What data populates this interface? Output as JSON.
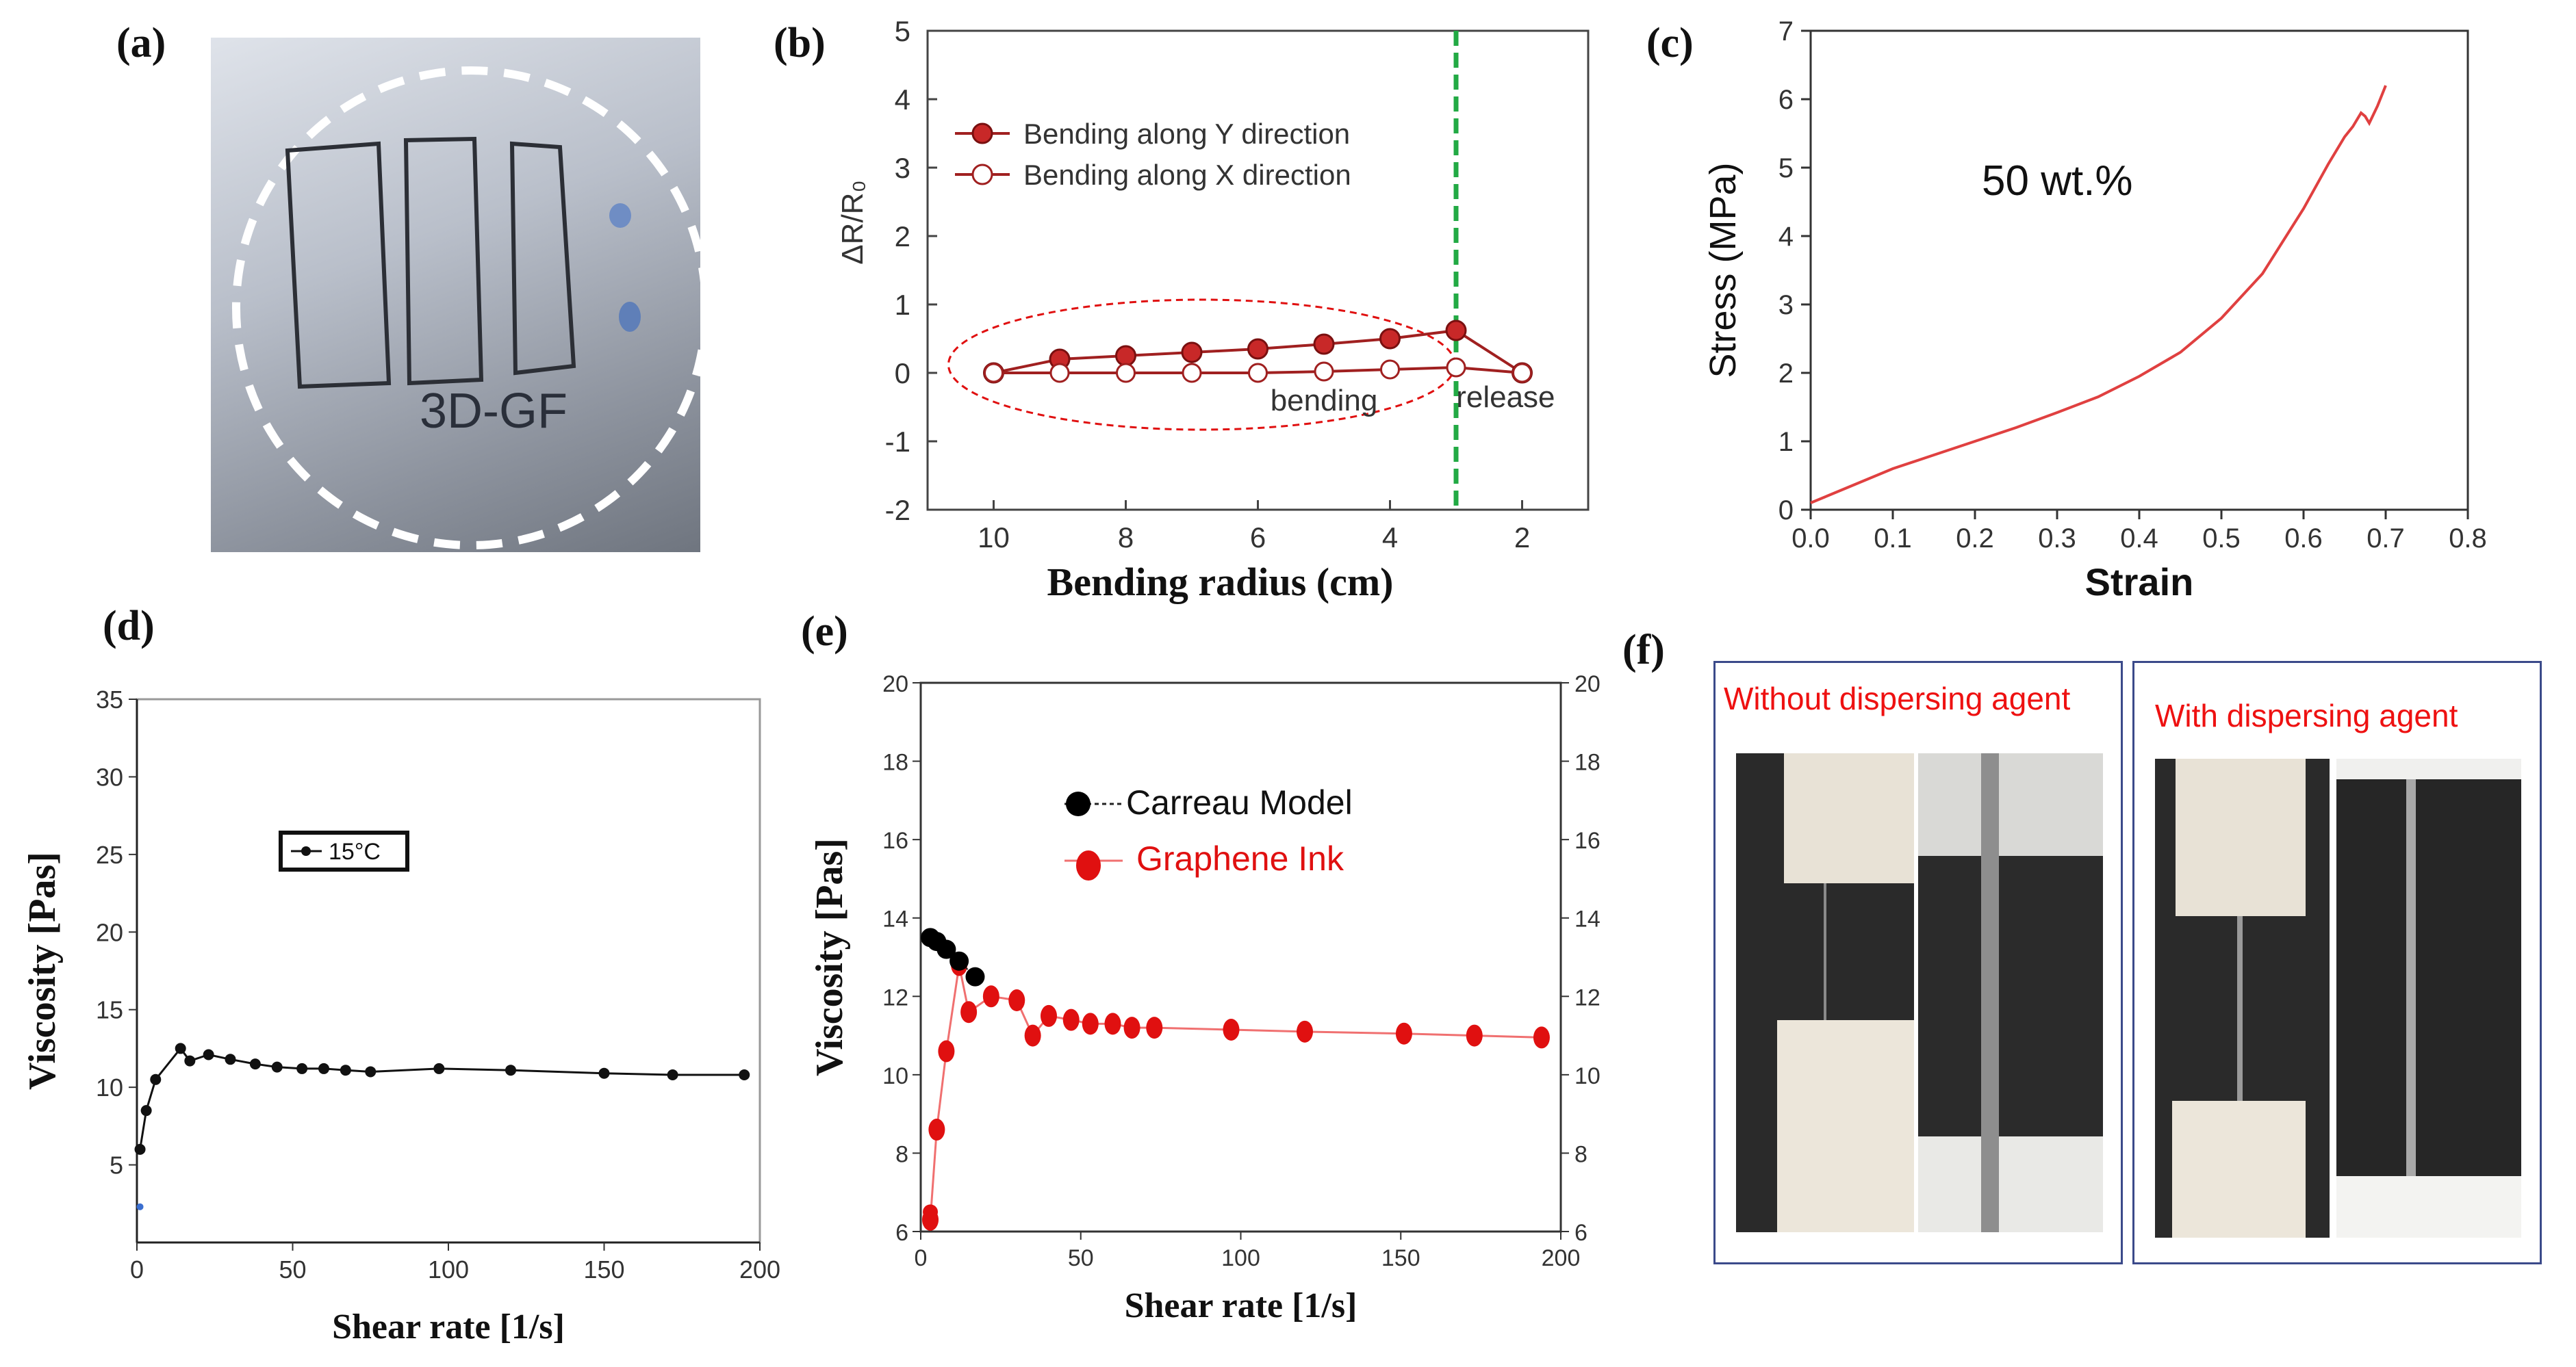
{
  "panels": {
    "a": "(a)",
    "b": "(b)",
    "c": "(c)",
    "d": "(d)",
    "e": "(e)",
    "f": "(f)"
  },
  "photo_a": {
    "label": "3D-GF"
  },
  "panel_f": {
    "left_caption": "Without dispersing agent",
    "right_caption": "With dispersing agent"
  },
  "colors": {
    "red": "#e01010",
    "darkred": "#a02020",
    "green": "#22aa44",
    "black": "#000000",
    "frame": "#3b4a8a"
  },
  "chart_data": [
    {
      "id": "b",
      "type": "line",
      "xlabel": "Bending radius (cm)",
      "ylabel": "ΔR/R₀",
      "xlim": [
        11,
        1
      ],
      "ylim": [
        -2,
        5
      ],
      "xticks": [
        10,
        8,
        6,
        4,
        2
      ],
      "yticks": [
        -2,
        -1,
        0,
        1,
        2,
        3,
        4,
        5
      ],
      "series": [
        {
          "name": "Bending along Y direction",
          "x": [
            10,
            9,
            8,
            7,
            6,
            5,
            4,
            3,
            2
          ],
          "y": [
            0,
            0.2,
            0.25,
            0.3,
            0.35,
            0.42,
            0.5,
            0.62,
            0
          ]
        },
        {
          "name": "Bending along X direction",
          "x": [
            10,
            9,
            8,
            7,
            6,
            5,
            4,
            3,
            2
          ],
          "y": [
            0,
            0,
            0,
            0,
            0,
            0.02,
            0.05,
            0.08,
            0
          ]
        }
      ],
      "annotations": {
        "bending": "bending",
        "release": "release",
        "vline_x": 3
      }
    },
    {
      "id": "c",
      "type": "line",
      "xlabel": "Strain",
      "ylabel": "Stress (MPa)",
      "xlim": [
        0,
        0.8
      ],
      "ylim": [
        0,
        7
      ],
      "xticks": [
        0.0,
        0.1,
        0.2,
        0.3,
        0.4,
        0.5,
        0.6,
        0.7,
        0.8
      ],
      "yticks": [
        0,
        1,
        2,
        3,
        4,
        5,
        6,
        7
      ],
      "xtick_labels": [
        "0.0",
        "0.1",
        "0.2",
        "0.3",
        "0.4",
        "0.5",
        "0.6",
        "0.7",
        "0.8"
      ],
      "annotation": "50 wt.%",
      "series": [
        {
          "name": "50 wt.%",
          "x": [
            0,
            0.05,
            0.1,
            0.15,
            0.2,
            0.25,
            0.3,
            0.35,
            0.4,
            0.45,
            0.5,
            0.55,
            0.6,
            0.63,
            0.65,
            0.66,
            0.67,
            0.675,
            0.68,
            0.69,
            0.7
          ],
          "y": [
            0.1,
            0.35,
            0.6,
            0.8,
            1.0,
            1.2,
            1.42,
            1.65,
            1.95,
            2.3,
            2.8,
            3.45,
            4.4,
            5.05,
            5.45,
            5.6,
            5.8,
            5.75,
            5.65,
            5.9,
            6.2
          ]
        }
      ]
    },
    {
      "id": "d",
      "type": "line",
      "xlabel": "Shear rate [1/s]",
      "ylabel": "Viscosity [Pas]",
      "xlim": [
        0,
        200
      ],
      "ylim": [
        0,
        35
      ],
      "xticks": [
        0,
        50,
        100,
        150,
        200
      ],
      "yticks": [
        5,
        10,
        15,
        20,
        25,
        30,
        35
      ],
      "legend": "15°C",
      "series": [
        {
          "name": "15°C",
          "x": [
            1,
            3,
            6,
            14,
            17,
            23,
            30,
            38,
            45,
            53,
            60,
            67,
            75,
            97,
            120,
            150,
            172,
            195
          ],
          "y": [
            6,
            8.5,
            10.5,
            12.5,
            11.7,
            12.1,
            11.8,
            11.5,
            11.3,
            11.2,
            11.2,
            11.1,
            11.0,
            11.2,
            11.1,
            10.9,
            10.8,
            10.8
          ]
        }
      ]
    },
    {
      "id": "e",
      "type": "scatter",
      "xlabel": "Shear rate [1/s]",
      "ylabel": "Viscosity [Pas]",
      "xlim": [
        0,
        200
      ],
      "ylim": [
        6,
        20
      ],
      "xticks": [
        0,
        50,
        100,
        150,
        200
      ],
      "yticks": [
        6,
        8,
        10,
        12,
        14,
        16,
        18,
        20
      ],
      "series": [
        {
          "name": "Carreau Model",
          "x": [
            3,
            5,
            8,
            12,
            17
          ],
          "y": [
            13.5,
            13.4,
            13.2,
            12.9,
            12.5
          ]
        },
        {
          "name": "Graphene Ink",
          "x": [
            3,
            5,
            8,
            12,
            15,
            22,
            30,
            35,
            40,
            47,
            53,
            60,
            66,
            73,
            97,
            120,
            151,
            173,
            194
          ],
          "y": [
            6.3,
            8.6,
            10.6,
            12.8,
            11.6,
            12.0,
            11.9,
            11.0,
            11.5,
            11.4,
            11.3,
            11.3,
            11.2,
            11.2,
            11.15,
            11.1,
            11.05,
            11.0,
            10.95
          ]
        }
      ]
    }
  ]
}
